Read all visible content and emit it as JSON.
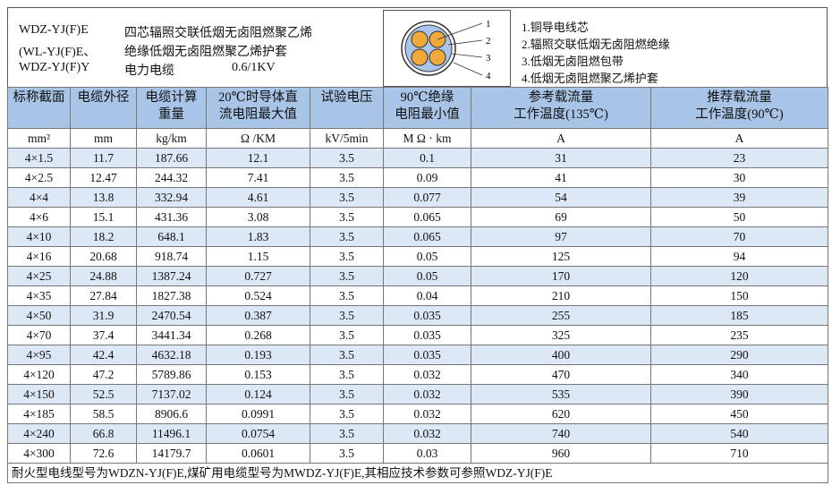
{
  "header": {
    "models": [
      "WDZ-YJ(F)E",
      "(WL-YJ(F)E、",
      "WDZ-YJ(F)Y"
    ],
    "descriptions": [
      "四芯辐照交联低烟无卤阻燃聚乙烯",
      "绝缘低烟无卤阻燃聚乙烯护套",
      "电力电缆"
    ],
    "voltage": "0.6/1KV",
    "diagram_labels": [
      "1",
      "2",
      "3",
      "4"
    ],
    "legend": [
      "1.铜导电线芯",
      "2.辐照交联低烟无卤阻燃绝缘",
      "3.低烟无卤阻燃包带",
      "4.低烟无卤阻燃聚乙烯护套"
    ]
  },
  "table": {
    "columns": [
      [
        "标称截面"
      ],
      [
        "电缆外径"
      ],
      [
        "电缆计算",
        "重量"
      ],
      [
        "20℃时导体直",
        "流电阻最大值"
      ],
      [
        "试验电压"
      ],
      [
        "90℃绝缘",
        "电阻最小值"
      ],
      [
        "参考载流量",
        "工作温度(135℃)"
      ],
      [
        "推荐载流量",
        "工作温度(90℃)"
      ]
    ],
    "units": [
      "mm²",
      "mm",
      "kg/km",
      "Ω /KM",
      "kV/5min",
      "M Ω · km",
      "A",
      "A"
    ],
    "rows": [
      [
        "4×1.5",
        "11.7",
        "187.66",
        "12.1",
        "3.5",
        "0.1",
        "31",
        "23"
      ],
      [
        "4×2.5",
        "12.47",
        "244.32",
        "7.41",
        "3.5",
        "0.09",
        "41",
        "30"
      ],
      [
        "4×4",
        "13.8",
        "332.94",
        "4.61",
        "3.5",
        "0.077",
        "54",
        "39"
      ],
      [
        "4×6",
        "15.1",
        "431.36",
        "3.08",
        "3.5",
        "0.065",
        "69",
        "50"
      ],
      [
        "4×10",
        "18.2",
        "648.1",
        "1.83",
        "3.5",
        "0.065",
        "97",
        "70"
      ],
      [
        "4×16",
        "20.68",
        "918.74",
        "1.15",
        "3.5",
        "0.05",
        "125",
        "94"
      ],
      [
        "4×25",
        "24.88",
        "1387.24",
        "0.727",
        "3.5",
        "0.05",
        "170",
        "120"
      ],
      [
        "4×35",
        "27.84",
        "1827.38",
        "0.524",
        "3.5",
        "0.04",
        "210",
        "150"
      ],
      [
        "4×50",
        "31.9",
        "2470.54",
        "0.387",
        "3.5",
        "0.035",
        "255",
        "185"
      ],
      [
        "4×70",
        "37.4",
        "3441.34",
        "0.268",
        "3.5",
        "0.035",
        "325",
        "235"
      ],
      [
        "4×95",
        "42.4",
        "4632.18",
        "0.193",
        "3.5",
        "0.035",
        "400",
        "290"
      ],
      [
        "4×120",
        "47.2",
        "5789.86",
        "0.153",
        "3.5",
        "0.032",
        "470",
        "340"
      ],
      [
        "4×150",
        "52.5",
        "7137.02",
        "0.124",
        "3.5",
        "0.032",
        "535",
        "390"
      ],
      [
        "4×185",
        "58.5",
        "8906.6",
        "0.0991",
        "3.5",
        "0.032",
        "620",
        "450"
      ],
      [
        "4×240",
        "66.8",
        "11496.1",
        "0.0754",
        "3.5",
        "0.032",
        "740",
        "540"
      ],
      [
        "4×300",
        "72.6",
        "14179.7",
        "0.0601",
        "3.5",
        "0.03",
        "960",
        "710"
      ]
    ],
    "note": "耐火型电线型号为WDZN-YJ(F)E,煤矿用电缆型号为MWDZ-YJ(F)E,其相应技术参数可参照WDZ-YJ(F)E"
  }
}
